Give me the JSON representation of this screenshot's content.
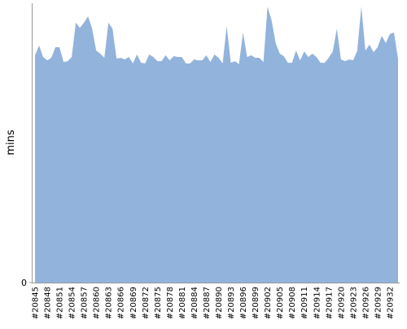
{
  "chart_data": {
    "type": "area",
    "y_label": "mins",
    "color": "#92b3dc",
    "categories": [
      "#20845",
      null,
      null,
      "#20848",
      null,
      null,
      "#20851",
      null,
      null,
      "#20854",
      null,
      null,
      "#20857",
      null,
      null,
      "#20860",
      null,
      null,
      "#20863",
      null,
      null,
      "#20866",
      null,
      null,
      "#20869",
      null,
      null,
      "#20872",
      null,
      null,
      "#20875",
      null,
      null,
      "#20878",
      null,
      null,
      "#20881",
      null,
      null,
      "#20884",
      null,
      null,
      "#20887",
      null,
      null,
      "#20890",
      null,
      null,
      "#20893",
      null,
      null,
      "#20896",
      null,
      null,
      "#20899",
      null,
      null,
      "#20902",
      null,
      null,
      "#20905",
      null,
      null,
      "#20908",
      null,
      null,
      "#20911",
      null,
      null,
      "#20914",
      null,
      null,
      "#20917",
      null,
      null,
      "#20920",
      null,
      null,
      "#20923",
      null,
      null,
      "#20926",
      null,
      null,
      "#20929",
      null,
      null,
      "#20932",
      null,
      null
    ],
    "values": [
      8.16,
      8.51,
      8.1,
      7.98,
      8.07,
      8.45,
      8.45,
      7.92,
      7.95,
      8.1,
      9.33,
      9.15,
      9.33,
      9.56,
      9.12,
      8.33,
      8.22,
      8.07,
      9.33,
      9.12,
      8.04,
      8.07,
      8.01,
      8.1,
      7.87,
      8.19,
      7.89,
      7.87,
      8.19,
      8.1,
      7.95,
      7.95,
      8.16,
      7.98,
      8.13,
      8.1,
      8.1,
      7.87,
      7.87,
      8.01,
      7.98,
      7.98,
      8.16,
      7.92,
      8.19,
      8.07,
      7.87,
      9.21,
      7.89,
      7.95,
      7.84,
      8.98,
      8.1,
      8.16,
      8.07,
      8.07,
      7.92,
      9.91,
      9.42,
      8.6,
      8.22,
      8.13,
      7.89,
      7.89,
      8.33,
      7.98,
      8.3,
      8.1,
      8.22,
      8.1,
      7.89,
      7.89,
      8.07,
      8.3,
      9.12,
      8.01,
      7.95,
      8.01,
      7.98,
      8.33,
      9.91,
      8.33,
      8.54,
      8.27,
      8.45,
      8.86,
      8.6,
      8.92,
      8.98,
      8.04
    ],
    "ylim": [
      0,
      10
    ],
    "yticks": [
      0
    ]
  }
}
